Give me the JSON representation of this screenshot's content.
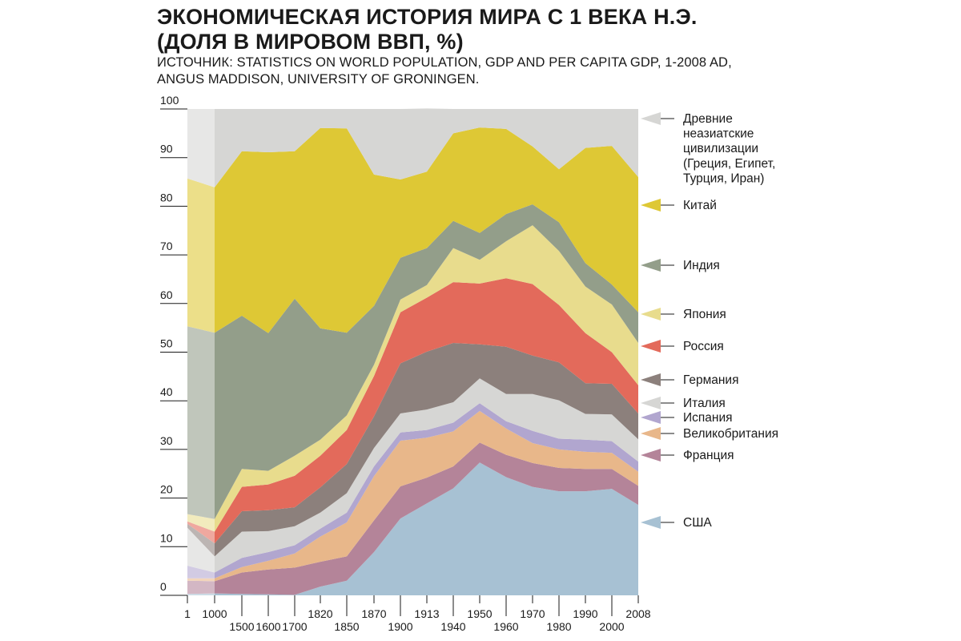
{
  "chart_data": {
    "type": "area",
    "stacked": true,
    "title": [
      "ЭКОНОМИЧЕСКАЯ ИСТОРИЯ МИРА С 1 ВЕКА Н.Э.",
      "(ДОЛЯ В МИРОВОМ ВВП, %)"
    ],
    "subtitle": [
      "ИСТОЧНИК: STATISTICS ON WORLD POPULATION, GDP AND PER CAPITA GDP, 1-2008 AD,",
      "ANGUS MADDISON, UNIVERSITY OF GRONINGEN."
    ],
    "ylim": [
      0,
      100
    ],
    "y_ticks": [
      "0",
      "10",
      "20",
      "30",
      "40",
      "50",
      "60",
      "70",
      "80",
      "90",
      "100"
    ],
    "x": [
      1,
      1000,
      1500,
      1600,
      1700,
      1820,
      1850,
      1870,
      1900,
      1913,
      1940,
      1950,
      1960,
      1970,
      1980,
      1990,
      2000,
      2008
    ],
    "x_tick_labels": [
      "1",
      "1000",
      "1500",
      "1600",
      "1700",
      "1820",
      "1850",
      "1870",
      "1900",
      "1913",
      "1940",
      "1950",
      "1960",
      "1970",
      "1980",
      "1990",
      "2000",
      "2008"
    ],
    "legend_position": "right",
    "series": [
      {
        "name": "США",
        "color": "#a7c1d3",
        "values": [
          0.3,
          0.4,
          0.3,
          0.2,
          0.1,
          1.8,
          3,
          8.9,
          15.8,
          18.9,
          22,
          27.3,
          24.3,
          22.3,
          21.4,
          21.4,
          21.9,
          18.6
        ]
      },
      {
        "name": "Франция",
        "color": "#b48499",
        "values": [
          2.7,
          2.5,
          4.4,
          5.1,
          5.6,
          5.1,
          5,
          6.5,
          6.6,
          5.3,
          4.5,
          4.1,
          4.6,
          4.9,
          4.8,
          4.6,
          4.1,
          3.9
        ]
      },
      {
        "name": "Великобритания",
        "color": "#e8b78a",
        "values": [
          0.5,
          0.6,
          1.1,
          1.8,
          2.9,
          5.2,
          7,
          9.1,
          9.4,
          8.2,
          7.2,
          6.5,
          5.4,
          4.1,
          3.8,
          3.5,
          3.3,
          2.9
        ]
      },
      {
        "name": "Испания",
        "color": "#b1a6cf",
        "values": [
          2.6,
          1.2,
          1.9,
          1.8,
          1.7,
          1.6,
          2,
          2,
          1.7,
          1.6,
          1.8,
          1.6,
          1.5,
          2.5,
          2.2,
          2.5,
          2.4,
          2.1
        ]
      },
      {
        "name": "Италия",
        "color": "#d6d6d4",
        "values": [
          7.8,
          3.3,
          5.4,
          4.3,
          3.9,
          3.3,
          4,
          3.8,
          3.9,
          4.2,
          4.2,
          5.1,
          5.6,
          7.6,
          7.9,
          5.3,
          5.5,
          4.6
        ]
      },
      {
        "name": "Германия",
        "color": "#8c807c",
        "values": [
          0.8,
          2.7,
          4.2,
          4.3,
          3.9,
          5.2,
          6,
          6.5,
          10.3,
          11.9,
          12.2,
          7,
          9.7,
          7.9,
          7.8,
          6.3,
          6.3,
          5.3
        ]
      },
      {
        "name": "Россия",
        "color": "#e36a5b",
        "values": [
          0.5,
          2.4,
          5,
          5.3,
          6.5,
          6.5,
          7,
          8.3,
          10.5,
          11.1,
          12.5,
          12.5,
          14.1,
          14.7,
          11.8,
          10.3,
          6.5,
          5.8
        ]
      },
      {
        "name": "Япония",
        "color": "#e8dc8d",
        "values": [
          1.5,
          2.6,
          3.7,
          2.8,
          4.1,
          3.3,
          3,
          2.3,
          2.6,
          2.6,
          7,
          4.9,
          7.6,
          12.1,
          11.1,
          9.6,
          9.8,
          8.7
        ]
      },
      {
        "name": "Индия",
        "color": "#939e8a",
        "values": [
          38.6,
          38.3,
          31.5,
          28.3,
          32.3,
          22.9,
          17,
          12.1,
          8.6,
          7.6,
          5.6,
          5.5,
          5.6,
          4.3,
          5.9,
          4.8,
          4.1,
          6.3
        ]
      },
      {
        "name": "Китай",
        "color": "#dec835",
        "values": [
          30.4,
          29.9,
          33.8,
          37.2,
          30.3,
          41.2,
          42,
          27,
          16.1,
          15.7,
          18,
          21.7,
          17.5,
          11.9,
          10.9,
          23.7,
          28.5,
          27.8
        ]
      },
      {
        "name": "Древние неазиатские цивилизации (Греция, Египет, Турция, Иран)",
        "color": "#d6d6d4",
        "values": [
          14.3,
          16.1,
          8.7,
          8.9,
          8.7,
          3.9,
          4,
          13.5,
          14.5,
          13.0,
          5.0,
          3.8,
          4.1,
          7.7,
          12.4,
          8.0,
          7.6,
          14.0
        ]
      }
    ]
  },
  "legend_labels": [
    [
      "Древние",
      "неазиатские",
      "цивилизации",
      "(Греция, Египет,",
      "Турция, Иран)"
    ],
    [
      "Китай"
    ],
    [
      "Индия"
    ],
    [
      "Япония"
    ],
    [
      "Россия"
    ],
    [
      "Германия"
    ],
    [
      "Италия"
    ],
    [
      "Испания"
    ],
    [
      "Великобритания"
    ],
    [
      "Франция"
    ],
    [
      "США"
    ]
  ]
}
